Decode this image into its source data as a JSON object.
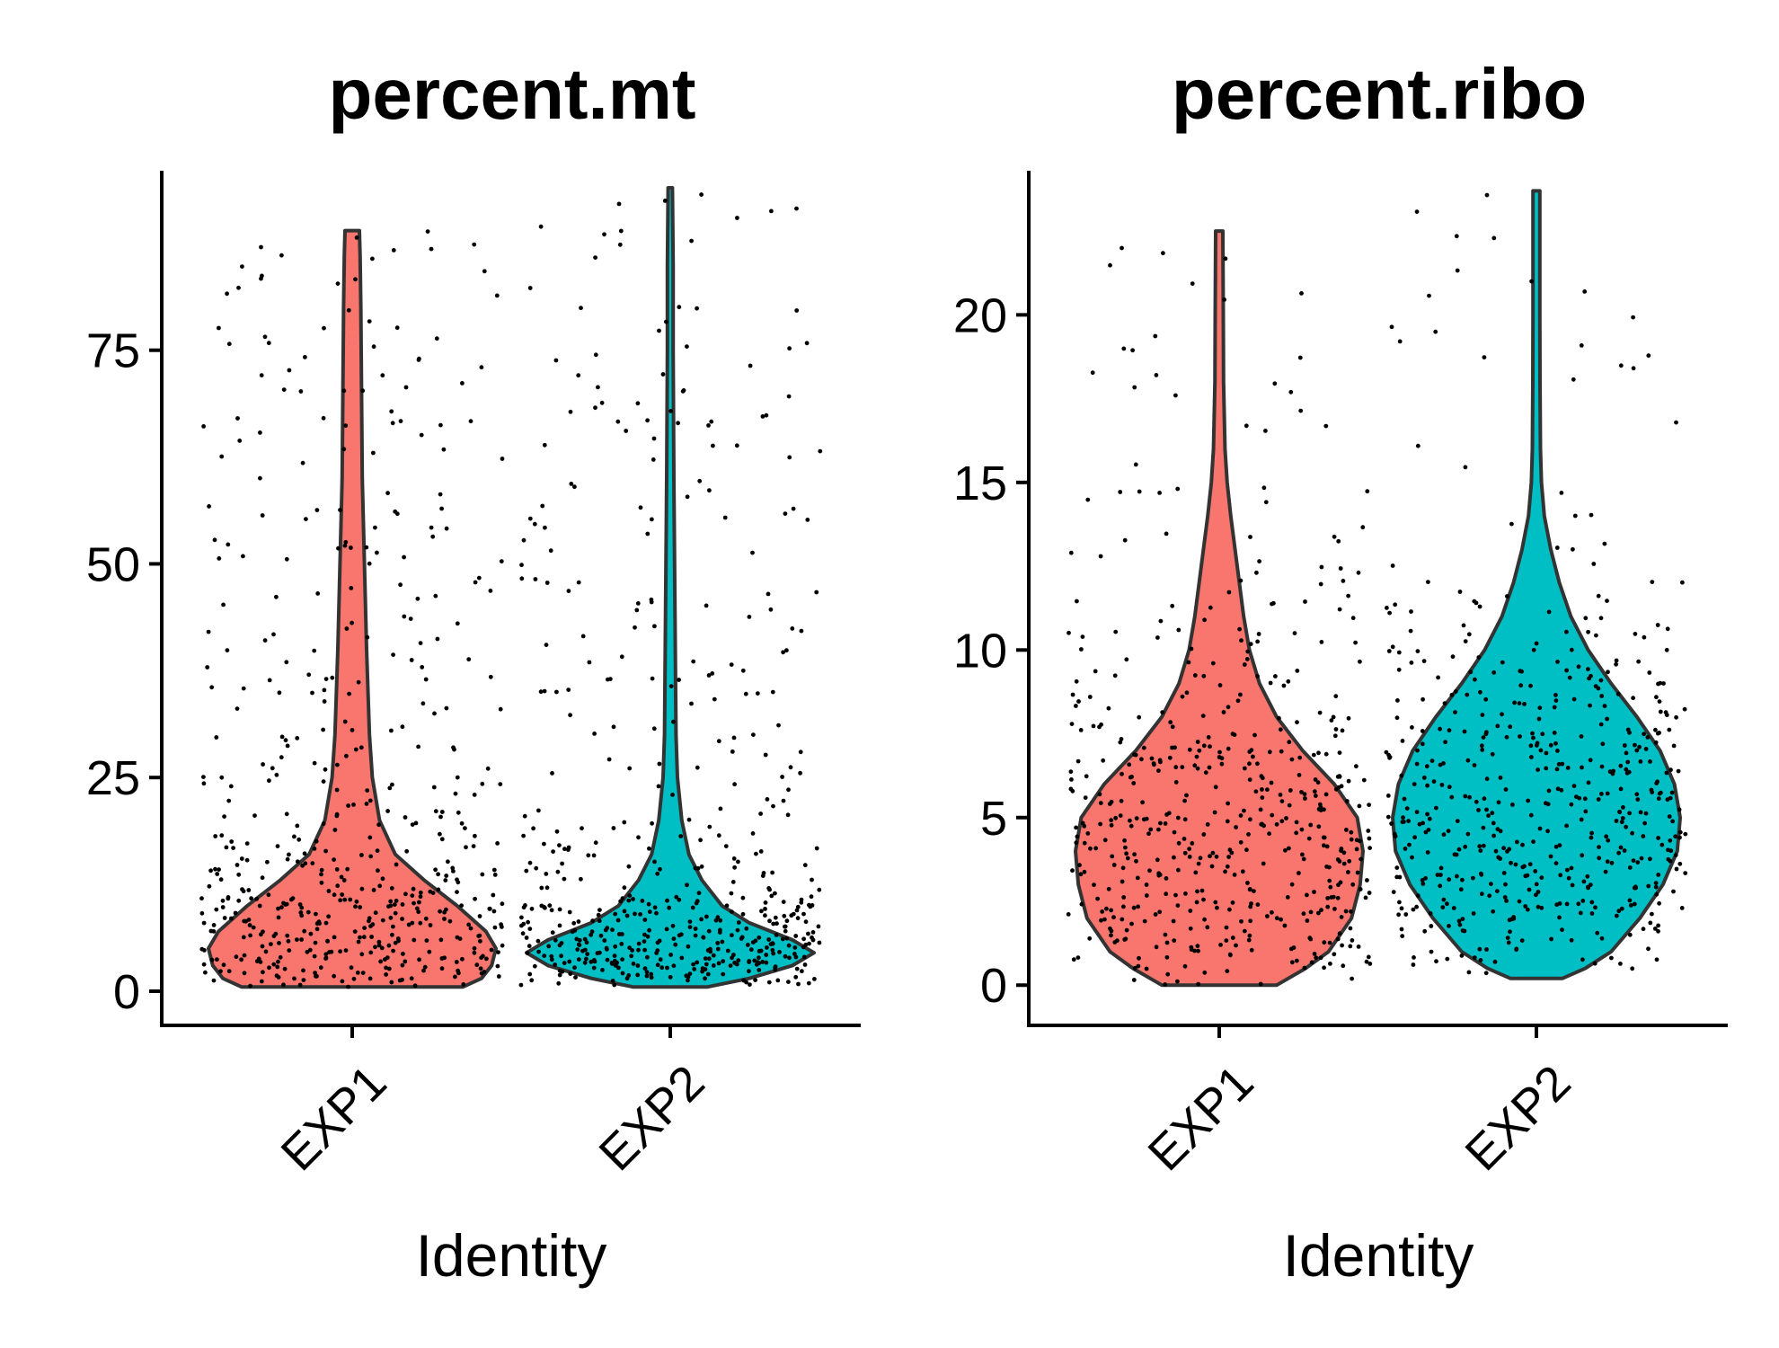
{
  "chart_data": [
    {
      "type": "violin",
      "title": "percent.mt",
      "xlabel": "Identity",
      "ylabel": "",
      "ylim": [
        -4,
        96
      ],
      "yticks": [
        0,
        25,
        50,
        75
      ],
      "categories": [
        "EXP1",
        "EXP2"
      ],
      "colors": [
        "#F8766D",
        "#00BFC4"
      ],
      "jitter_points": "on",
      "grid": "off",
      "legend": "none",
      "series": [
        {
          "category": "EXP1",
          "min": 0.5,
          "max": 89,
          "density_profile": [
            {
              "y": 0.5,
              "w": 0.77
            },
            {
              "y": 1.5,
              "w": 0.9
            },
            {
              "y": 3,
              "w": 0.97
            },
            {
              "y": 5,
              "w": 1.0
            },
            {
              "y": 7,
              "w": 0.93
            },
            {
              "y": 10,
              "w": 0.73
            },
            {
              "y": 13,
              "w": 0.5
            },
            {
              "y": 16,
              "w": 0.3
            },
            {
              "y": 20,
              "w": 0.19
            },
            {
              "y": 25,
              "w": 0.14
            },
            {
              "y": 30,
              "w": 0.12
            },
            {
              "y": 40,
              "w": 0.1
            },
            {
              "y": 50,
              "w": 0.085
            },
            {
              "y": 60,
              "w": 0.07
            },
            {
              "y": 70,
              "w": 0.065
            },
            {
              "y": 80,
              "w": 0.06
            },
            {
              "y": 86,
              "w": 0.055
            },
            {
              "y": 89,
              "w": 0.05
            }
          ]
        },
        {
          "category": "EXP2",
          "min": 0.5,
          "max": 94,
          "density_profile": [
            {
              "y": 0.5,
              "w": 0.26
            },
            {
              "y": 1.5,
              "w": 0.55
            },
            {
              "y": 3,
              "w": 0.85
            },
            {
              "y": 4.5,
              "w": 1.0
            },
            {
              "y": 6,
              "w": 0.85
            },
            {
              "y": 8,
              "w": 0.55
            },
            {
              "y": 10,
              "w": 0.36
            },
            {
              "y": 13,
              "w": 0.22
            },
            {
              "y": 16,
              "w": 0.13
            },
            {
              "y": 20,
              "w": 0.08
            },
            {
              "y": 25,
              "w": 0.05
            },
            {
              "y": 30,
              "w": 0.04
            },
            {
              "y": 40,
              "w": 0.035
            },
            {
              "y": 50,
              "w": 0.03
            },
            {
              "y": 60,
              "w": 0.025
            },
            {
              "y": 75,
              "w": 0.02
            },
            {
              "y": 85,
              "w": 0.02
            },
            {
              "y": 94,
              "w": 0.015
            }
          ]
        }
      ]
    },
    {
      "type": "violin",
      "title": "percent.ribo",
      "xlabel": "Identity",
      "ylabel": "",
      "ylim": [
        -1.2,
        24.3
      ],
      "yticks": [
        0,
        5,
        10,
        15,
        20
      ],
      "categories": [
        "EXP1",
        "EXP2"
      ],
      "colors": [
        "#F8766D",
        "#00BFC4"
      ],
      "jitter_points": "on",
      "grid": "off",
      "legend": "none",
      "series": [
        {
          "category": "EXP1",
          "min": 0,
          "max": 22.5,
          "density_profile": [
            {
              "y": 0,
              "w": 0.4
            },
            {
              "y": 0.5,
              "w": 0.6
            },
            {
              "y": 1,
              "w": 0.76
            },
            {
              "y": 2,
              "w": 0.92
            },
            {
              "y": 3,
              "w": 0.98
            },
            {
              "y": 4,
              "w": 1.0
            },
            {
              "y": 5,
              "w": 0.96
            },
            {
              "y": 6,
              "w": 0.8
            },
            {
              "y": 7,
              "w": 0.58
            },
            {
              "y": 8,
              "w": 0.4
            },
            {
              "y": 9,
              "w": 0.28
            },
            {
              "y": 10,
              "w": 0.21
            },
            {
              "y": 11,
              "w": 0.17
            },
            {
              "y": 12,
              "w": 0.14
            },
            {
              "y": 13,
              "w": 0.11
            },
            {
              "y": 14,
              "w": 0.08
            },
            {
              "y": 15,
              "w": 0.055
            },
            {
              "y": 16,
              "w": 0.04
            },
            {
              "y": 18,
              "w": 0.03
            },
            {
              "y": 20,
              "w": 0.028
            },
            {
              "y": 22.5,
              "w": 0.025
            }
          ]
        },
        {
          "category": "EXP2",
          "min": 0.2,
          "max": 23.7,
          "density_profile": [
            {
              "y": 0.2,
              "w": 0.18
            },
            {
              "y": 0.5,
              "w": 0.34
            },
            {
              "y": 1,
              "w": 0.52
            },
            {
              "y": 2,
              "w": 0.72
            },
            {
              "y": 3,
              "w": 0.88
            },
            {
              "y": 4,
              "w": 0.98
            },
            {
              "y": 5,
              "w": 1.0
            },
            {
              "y": 6,
              "w": 0.96
            },
            {
              "y": 7,
              "w": 0.86
            },
            {
              "y": 8,
              "w": 0.7
            },
            {
              "y": 9,
              "w": 0.52
            },
            {
              "y": 10,
              "w": 0.36
            },
            {
              "y": 11,
              "w": 0.24
            },
            {
              "y": 12,
              "w": 0.16
            },
            {
              "y": 13,
              "w": 0.1
            },
            {
              "y": 14,
              "w": 0.055
            },
            {
              "y": 15,
              "w": 0.035
            },
            {
              "y": 16,
              "w": 0.028
            },
            {
              "y": 18,
              "w": 0.025
            },
            {
              "y": 20,
              "w": 0.024
            },
            {
              "y": 22,
              "w": 0.024
            },
            {
              "y": 23.7,
              "w": 0.024
            }
          ]
        }
      ]
    }
  ]
}
